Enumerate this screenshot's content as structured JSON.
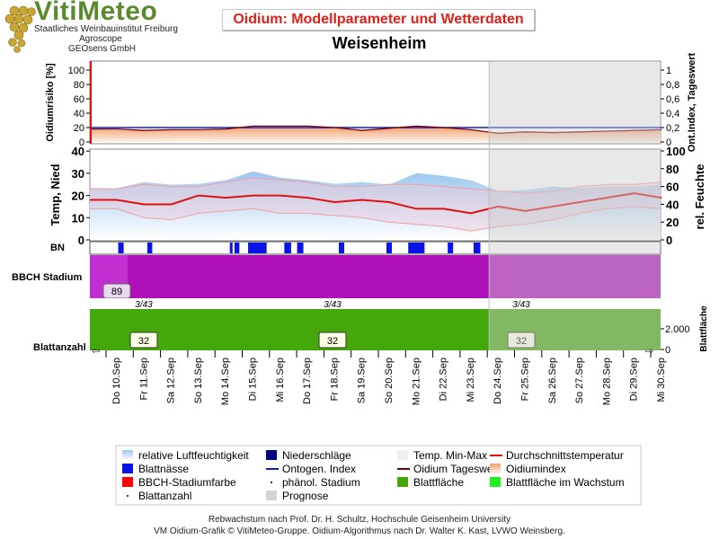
{
  "header": {
    "brand": "VitiMeteo",
    "institute_line1": "Staatliches Weinbauinstitut Freiburg",
    "institute_line2": "Agroscope",
    "institute_line3": "GEOsens GmbH",
    "title": "Oidium: Modellparameter und Wetterdaten"
  },
  "footer": {
    "line1": "Rebwachstum nach Prof. Dr. H. Schultz, Hochschule Geisenheim University",
    "line2": "VM Oidium-Grafik © VitiMeteo-Gruppe. Oidium-Algorithmus nach Dr. Walter K. Kast, LVWO Weinsberg."
  },
  "colors": {
    "frost_line": "#e01010",
    "ontogen_line": "#1020c0",
    "tageswert_line": "#7a0000",
    "temp_line": "#e01010",
    "minmax_line": "#f0a0a0",
    "humidity_fill": "#a8ccf0",
    "leaf_wetness": "#0a14e8",
    "bbch": "#b010b8",
    "leaf_area": "#45a80a",
    "forecast": "#d4d4d4"
  },
  "chart_data": {
    "type": "line",
    "title": "Weisenheim",
    "x": [
      "Do 10.Sep",
      "Fr 11.Sep",
      "Sa 12.Sep",
      "So 13.Sep",
      "Mo 14.Sep",
      "Di 15.Sep",
      "Mi 16.Sep",
      "Do 17.Sep",
      "Fr 18.Sep",
      "Sa 19.Sep",
      "So 20.Sep",
      "Mo 21.Sep",
      "Di 22.Sep",
      "Mi 23.Sep",
      "Do 24.Sep",
      "Fr 25.Sep",
      "Sa 26.Sep",
      "So 27.Sep",
      "Mo 28.Sep",
      "Di 29.Sep",
      "Mi 30.Sep"
    ],
    "forecast_start": "Do 24.Sep",
    "panels": {
      "oidium": {
        "ylabel_left": "Oidiumrisiko [%]",
        "ylabel_right": "Ont.Index, Tageswert",
        "ylim_left": [
          0,
          110
        ],
        "yticks_left": [
          "0",
          "20",
          "40",
          "60",
          "80",
          "100"
        ],
        "ylim_right": [
          0,
          1.1
        ],
        "yticks_right": [
          "0",
          "0,2",
          "0,4",
          "0,6",
          "0,8",
          "1"
        ],
        "oidiumindex": [
          17,
          16,
          17,
          17,
          18,
          20,
          20,
          20,
          19,
          17,
          18,
          21,
          19,
          17,
          12,
          14,
          14,
          14,
          15,
          16,
          17
        ],
        "ontogen_index": [
          0.2,
          0.2,
          0.2,
          0.2,
          0.2,
          0.2,
          0.2,
          0.2,
          0.2,
          0.2,
          0.2,
          0.2,
          0.2,
          0.2,
          0.2,
          0.2,
          0.2,
          0.2,
          0.2,
          0.2,
          0.2
        ],
        "tageswert": [
          0.18,
          0.16,
          0.17,
          0.17,
          0.18,
          0.22,
          0.22,
          0.22,
          0.2,
          0.16,
          0.19,
          0.22,
          0.2,
          0.17,
          0.12,
          0.14,
          0.13,
          0.14,
          0.15,
          0.16,
          0.17
        ]
      },
      "weather": {
        "ylabel_left": "Temp, Nied",
        "ylabel_right": "rel. Feuchte",
        "ylim_left": [
          0,
          40
        ],
        "yticks_left": [
          "0",
          "10",
          "20",
          "30",
          "40"
        ],
        "ylim_right": [
          0,
          100
        ],
        "yticks_right": [
          "0",
          "20",
          "40",
          "60",
          "80",
          "100"
        ],
        "humidity": [
          58,
          65,
          62,
          63,
          67,
          77,
          70,
          67,
          63,
          65,
          62,
          75,
          72,
          67,
          55,
          56,
          60,
          58,
          60,
          60,
          62
        ],
        "temp_mean": [
          18,
          16,
          16,
          20,
          19,
          20,
          20,
          19,
          17,
          18,
          17,
          14,
          14,
          12,
          15,
          13,
          15,
          17,
          19,
          21,
          19
        ],
        "temp_max": [
          23,
          25,
          24,
          24,
          26,
          28,
          27,
          26,
          24,
          24,
          25,
          25,
          24,
          23,
          22,
          21,
          22,
          24,
          25,
          25,
          26
        ],
        "temp_min": [
          14,
          10,
          9,
          12,
          13,
          14,
          12,
          12,
          11,
          10,
          8,
          7,
          6,
          4,
          6,
          7,
          9,
          12,
          14,
          15,
          14
        ],
        "precipitation": [
          0,
          0,
          0,
          0,
          0,
          0,
          0,
          0,
          0,
          0,
          0,
          0,
          0,
          0,
          0,
          0,
          0,
          0,
          0,
          0,
          0
        ]
      },
      "bn": {
        "label": "BN",
        "leaf_wetness": [
          [
            1.05,
            1.25
          ],
          [
            2.12,
            2.3
          ],
          [
            5.15,
            5.25
          ],
          [
            5.32,
            5.5
          ],
          [
            5.82,
            6.5
          ],
          [
            7.15,
            7.4
          ],
          [
            7.62,
            7.85
          ],
          [
            9.15,
            9.35
          ],
          [
            10.9,
            11.1
          ],
          [
            11.7,
            12.3
          ],
          [
            13.15,
            13.35
          ],
          [
            14.1,
            14.35
          ]
        ]
      },
      "bbch": {
        "label": "BBCH Stadium",
        "stage": "89"
      },
      "leaf": {
        "label": "Blattanzahl",
        "ylabel_right": "Blattfläche",
        "yticks_right": [
          "0",
          "2.000"
        ],
        "leaf_count": "32",
        "stage_marker": "3/43"
      }
    },
    "legend": {
      "position": "bottom",
      "items": [
        {
          "label": "relative Luftfeuchtigkeit",
          "swatch": "humidity"
        },
        {
          "label": "Niederschläge",
          "swatch": "precip"
        },
        {
          "label": "Temp. Min-Max",
          "swatch": "minmax"
        },
        {
          "label": "Durchschnittstemperatur",
          "swatch": "tempmean"
        },
        {
          "label": "Blattnässe",
          "swatch": "wetness"
        },
        {
          "label": "Ontogen. Index",
          "swatch": "ontogen"
        },
        {
          "label": "Oidium Tageswert",
          "swatch": "tageswert"
        },
        {
          "label": "Oidiumindex",
          "swatch": "oidiumindex"
        },
        {
          "label": "BBCH-Stadiumfarbe",
          "swatch": "bbch"
        },
        {
          "label": "phänol. Stadium",
          "swatch": "dot"
        },
        {
          "label": "Blattfläche",
          "swatch": "leaf"
        },
        {
          "label": "Blattfläche im Wachstum",
          "swatch": "leafgrow"
        },
        {
          "label": "Blattanzahl",
          "swatch": "dot"
        },
        {
          "label": "Prognose",
          "swatch": "forecast"
        }
      ]
    }
  }
}
